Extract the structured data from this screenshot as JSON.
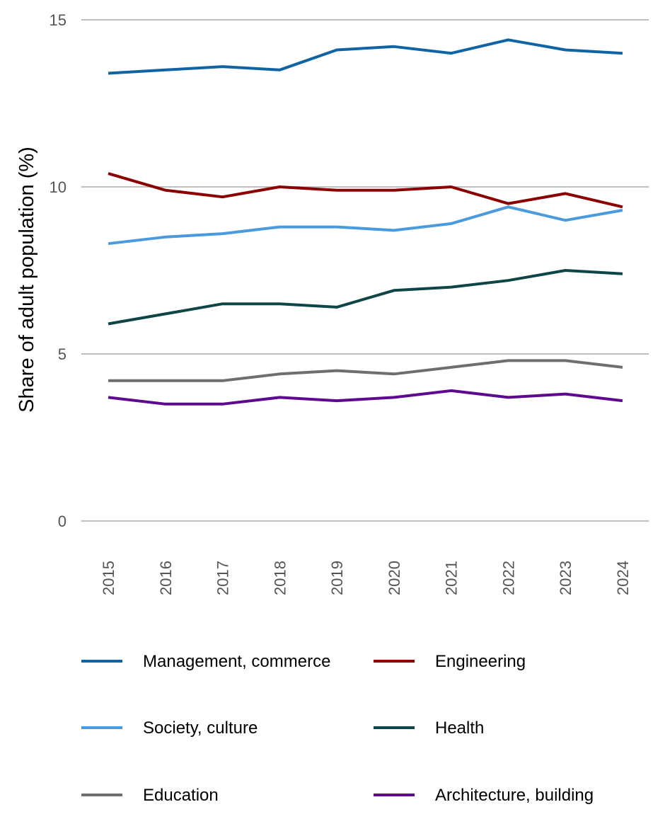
{
  "chart_data": {
    "type": "line",
    "title": "",
    "xlabel": "",
    "ylabel": "Share of adult population (%)",
    "ylim": [
      0,
      15
    ],
    "yticks": [
      "0",
      "5",
      "10",
      "15"
    ],
    "grid": true,
    "legend_position": "bottom",
    "categories": [
      "2015",
      "2016",
      "2017",
      "2018",
      "2019",
      "2020",
      "2021",
      "2022",
      "2023",
      "2024"
    ],
    "series": [
      {
        "name": "Management, commerce",
        "color": "#1064a3",
        "values": [
          13.4,
          13.5,
          13.6,
          13.5,
          14.1,
          14.2,
          14.0,
          14.4,
          14.1,
          14.0
        ]
      },
      {
        "name": "Engineering",
        "color": "#8b0000",
        "values": [
          10.4,
          9.9,
          9.7,
          10.0,
          9.9,
          9.9,
          10.0,
          9.5,
          9.8,
          9.4
        ]
      },
      {
        "name": "Society, culture",
        "color": "#4a9ade",
        "values": [
          8.3,
          8.5,
          8.6,
          8.8,
          8.8,
          8.7,
          8.9,
          9.4,
          9.0,
          9.3
        ]
      },
      {
        "name": "Health",
        "color": "#0e4547",
        "values": [
          5.9,
          6.2,
          6.5,
          6.5,
          6.4,
          6.9,
          7.0,
          7.2,
          7.5,
          7.4
        ]
      },
      {
        "name": "Education",
        "color": "#6e6e6e",
        "values": [
          4.2,
          4.2,
          4.2,
          4.4,
          4.5,
          4.4,
          4.6,
          4.8,
          4.8,
          4.6
        ]
      },
      {
        "name": "Architecture, building",
        "color": "#5d0a91",
        "values": [
          3.7,
          3.5,
          3.5,
          3.7,
          3.6,
          3.7,
          3.9,
          3.7,
          3.8,
          3.6
        ]
      }
    ]
  }
}
